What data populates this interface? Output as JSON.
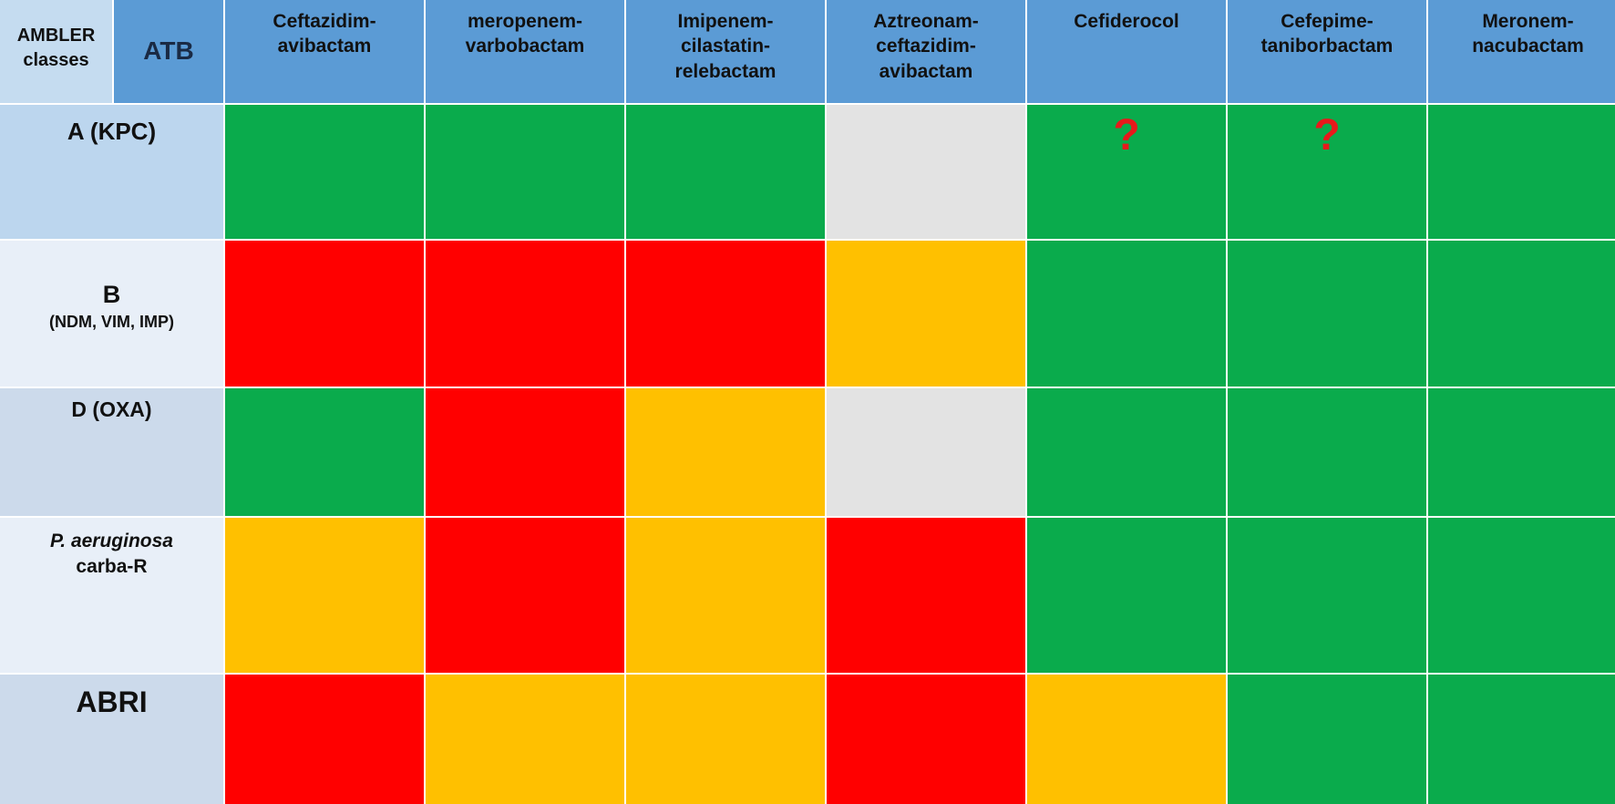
{
  "colors": {
    "green": "#0aab4c",
    "red": "#ff0000",
    "orange": "#ffc000",
    "gray": "#e3e3e3",
    "header_blue": "#5b9bd5",
    "question_mark": "#e8191b"
  },
  "header": {
    "ambler": "AMBLER\nclasses",
    "atb": "ATB"
  },
  "chart_data": {
    "type": "table",
    "columns": [
      "Ceftazidim-\navibactam",
      "meropenem-\nvarbobactam",
      "Imipenem-\ncilastatin-\nrelebactam",
      "Aztreonam-\nceftazidim-\navibactam",
      "Cefiderocol",
      "Cefepime-\ntaniborbactam",
      "Meronem-\nnacubactam"
    ],
    "rows": [
      {
        "main": "A (KPC)",
        "sub": "",
        "cells": [
          "green",
          "green",
          "green",
          "gray",
          "green",
          "green",
          "green"
        ],
        "marks": [
          "",
          "",
          "",
          "",
          "?",
          "?",
          ""
        ]
      },
      {
        "main": "B",
        "sub": "(NDM, VIM, IMP)",
        "cells": [
          "red",
          "red",
          "red",
          "orange",
          "green",
          "green",
          "green"
        ],
        "marks": [
          "",
          "",
          "",
          "",
          "",
          "",
          ""
        ]
      },
      {
        "main": "D (OXA)",
        "sub": "",
        "cells": [
          "green",
          "red",
          "orange",
          "gray",
          "green",
          "green",
          "green"
        ],
        "marks": [
          "",
          "",
          "",
          "",
          "",
          "",
          ""
        ]
      },
      {
        "main": "P. aeruginosa",
        "sub": "carba-R",
        "cells": [
          "orange",
          "red",
          "orange",
          "red",
          "green",
          "green",
          "green"
        ],
        "marks": [
          "",
          "",
          "",
          "",
          "",
          "",
          ""
        ]
      },
      {
        "main": "ABRI",
        "sub": "",
        "cells": [
          "red",
          "orange",
          "orange",
          "red",
          "orange",
          "green",
          "green"
        ],
        "marks": [
          "",
          "",
          "",
          "",
          "",
          "",
          ""
        ]
      }
    ]
  }
}
